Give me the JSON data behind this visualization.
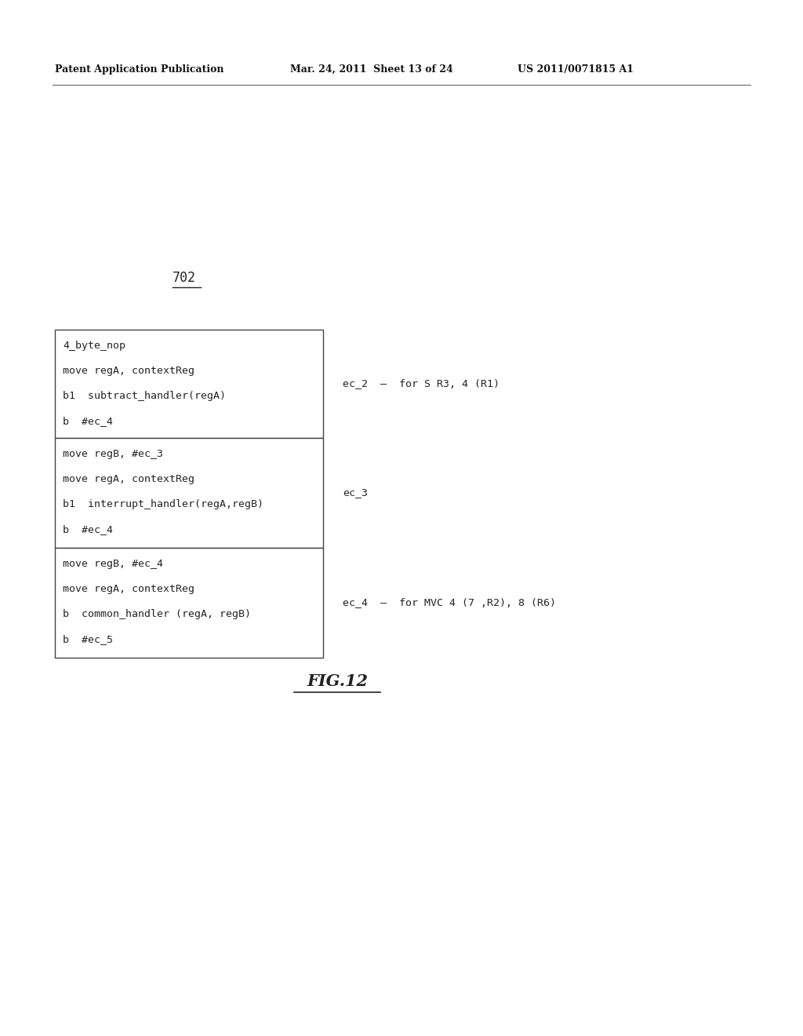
{
  "header_left": "Patent Application Publication",
  "header_mid": "Mar. 24, 2011  Sheet 13 of 24",
  "header_right": "US 2011/0071815 A1",
  "label_702": "702",
  "box1_lines": [
    "4_byte_nop",
    "move regA, contextReg",
    "b1  subtract_handler(regA)",
    "b  #ec_4"
  ],
  "box2_lines": [
    "move regB, #ec_3",
    "move regA, contextReg",
    "b1  interrupt_handler(regA,regB)",
    "b  #ec_4"
  ],
  "box3_lines": [
    "move regB, #ec_4",
    "move regA, contextReg",
    "b  common_handler (regA, regB)",
    "b  #ec_5"
  ],
  "label_ec2": "ec_2  –  for S R3, 4 (R1)",
  "label_ec3": "ec_3",
  "label_ec4": "ec_4  –  for MVC 4 (7 ,R2), 8 (R6)",
  "fig_label": "FIG.12",
  "bg_color": "#ffffff",
  "box_bg": "#ffffff",
  "box_border": "#444444",
  "text_color": "#222222",
  "header_color": "#111111"
}
